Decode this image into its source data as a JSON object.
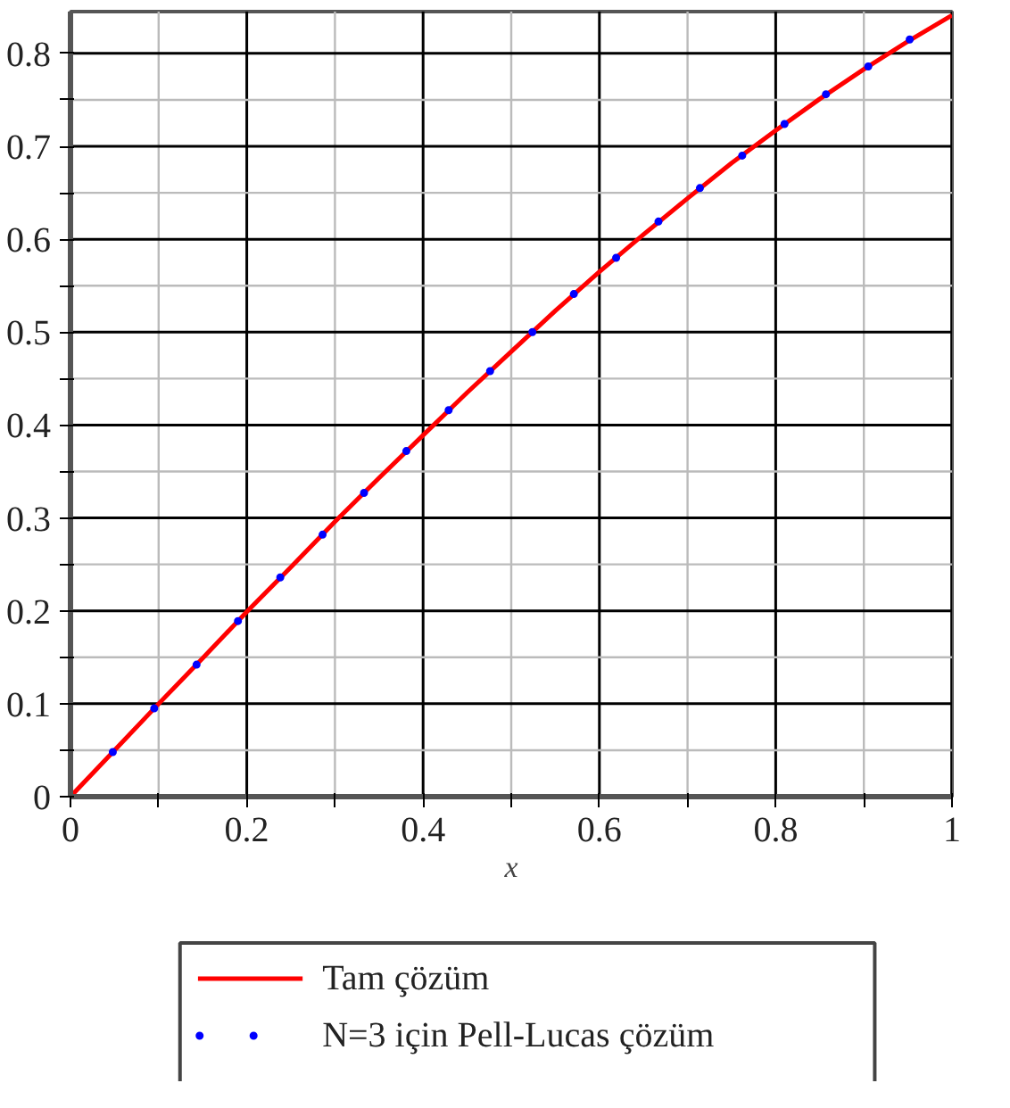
{
  "chart_data": {
    "type": "line",
    "xlabel": "x",
    "xlim": [
      0,
      1
    ],
    "ylim": [
      0,
      0.845
    ],
    "xticks": [
      0,
      {
        "value": 0.1,
        "label": null
      },
      0.2,
      {
        "value": 0.3,
        "label": null
      },
      0.4,
      {
        "value": 0.5,
        "label": null
      },
      0.6,
      {
        "value": 0.7,
        "label": null
      },
      0.8,
      {
        "value": 0.9,
        "label": null
      },
      1
    ],
    "yticks": [
      0,
      {
        "value": 0.05,
        "label": null
      },
      0.1,
      {
        "value": 0.15,
        "label": null
      },
      0.2,
      {
        "value": 0.25,
        "label": null
      },
      0.3,
      {
        "value": 0.35,
        "label": null
      },
      0.4,
      {
        "value": 0.45,
        "label": null
      },
      0.5,
      {
        "value": 0.55,
        "label": null
      },
      0.6,
      {
        "value": 0.65,
        "label": null
      },
      0.7,
      {
        "value": 0.75,
        "label": null
      },
      0.8
    ],
    "grid": true,
    "legend": "bottom",
    "series": [
      {
        "name": "Tam çözüm",
        "color": "#ff0000",
        "line_style": "solid",
        "marker": "none",
        "x": [
          0,
          0.05,
          0.1,
          0.15,
          0.2,
          0.25,
          0.3,
          0.35,
          0.4,
          0.45,
          0.5,
          0.55,
          0.6,
          0.65,
          0.7,
          0.75,
          0.8,
          0.85,
          0.9,
          0.95,
          1
        ],
        "values": [
          0,
          0.05,
          0.1,
          0.149,
          0.199,
          0.247,
          0.296,
          0.343,
          0.389,
          0.435,
          0.479,
          0.523,
          0.565,
          0.605,
          0.644,
          0.682,
          0.717,
          0.751,
          0.783,
          0.813,
          0.841
        ]
      },
      {
        "name": "N=3 için Pell-Lucas çözüm",
        "type": "scatter",
        "color": "#0000ff",
        "marker": "circle",
        "x": [
          0.048,
          0.095,
          0.143,
          0.19,
          0.238,
          0.286,
          0.333,
          0.381,
          0.429,
          0.476,
          0.524,
          0.571,
          0.619,
          0.667,
          0.714,
          0.762,
          0.81,
          0.857,
          0.905,
          0.952
        ],
        "values": [
          0.048,
          0.095,
          0.142,
          0.189,
          0.236,
          0.282,
          0.327,
          0.372,
          0.416,
          0.458,
          0.5,
          0.541,
          0.58,
          0.619,
          0.655,
          0.69,
          0.724,
          0.756,
          0.786,
          0.815
        ]
      }
    ]
  }
}
